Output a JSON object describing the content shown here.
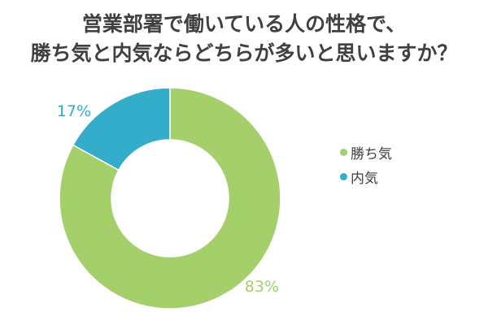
{
  "chart_data": {
    "type": "pie",
    "variant": "donut",
    "title_lines": [
      "営業部署で働いている人の性格で、",
      "勝ち気と内気ならどちらが多いと思いますか？"
    ],
    "slices": [
      {
        "label": "勝ち気",
        "value": 83,
        "display": "83%",
        "color": "#a5cf6b"
      },
      {
        "label": "内気",
        "value": 17,
        "display": "17%",
        "color": "#33adc9"
      }
    ],
    "start": "top",
    "direction": "clockwise",
    "legend_position": "right"
  }
}
